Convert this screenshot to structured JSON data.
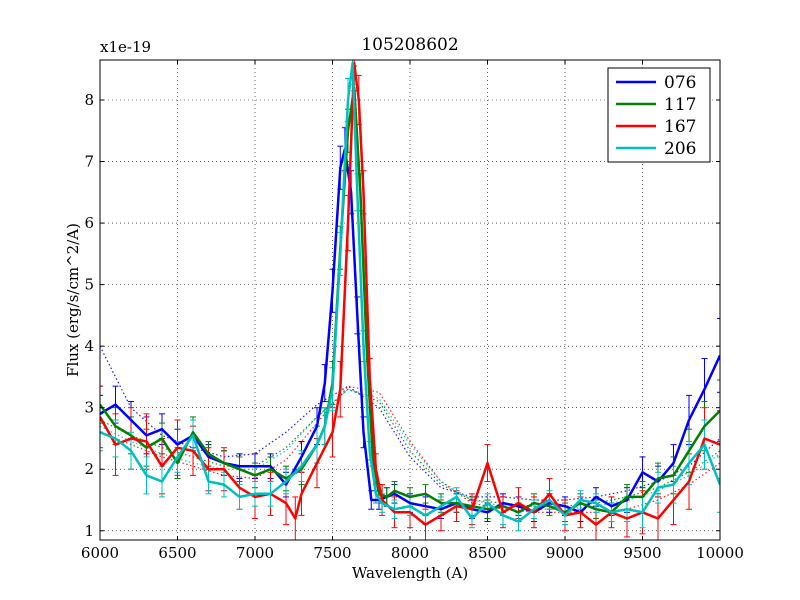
{
  "chart_data": {
    "type": "line",
    "title": "105208602",
    "xlabel": "Wavelength (A)",
    "ylabel": "Flux (erg/s/cm^2/A)",
    "y_scale_label": "x1e-19",
    "xlim": [
      6000,
      10000
    ],
    "ylim": [
      0.85,
      8.65
    ],
    "xticks": [
      6000,
      6500,
      7000,
      7500,
      8000,
      8500,
      9000,
      9500,
      10000
    ],
    "yticks": [
      1,
      2,
      3,
      4,
      5,
      6,
      7,
      8
    ],
    "grid": true,
    "legend_position": "top-right",
    "series": [
      {
        "name": "076",
        "color": "#0000ff",
        "x": [
          6000,
          6100,
          6200,
          6300,
          6400,
          6500,
          6600,
          6700,
          6800,
          6900,
          7000,
          7100,
          7200,
          7300,
          7400,
          7450,
          7500,
          7550,
          7580,
          7620,
          7660,
          7700,
          7750,
          7800,
          7850,
          7900,
          8000,
          8100,
          8200,
          8300,
          8400,
          8500,
          8600,
          8700,
          8800,
          8900,
          9000,
          9100,
          9200,
          9300,
          9400,
          9500,
          9600,
          9700,
          9800,
          9900,
          10000
        ],
        "y": [
          2.9,
          3.05,
          2.8,
          2.55,
          2.65,
          2.4,
          2.55,
          2.2,
          2.1,
          2.05,
          2.05,
          2.05,
          1.75,
          2.2,
          2.7,
          3.4,
          4.9,
          6.9,
          7.2,
          6.5,
          4.5,
          2.6,
          1.5,
          1.5,
          1.55,
          1.6,
          1.45,
          1.4,
          1.35,
          1.45,
          1.35,
          1.3,
          1.45,
          1.4,
          1.3,
          1.45,
          1.4,
          1.3,
          1.55,
          1.4,
          1.5,
          1.95,
          1.8,
          2.1,
          2.8,
          3.3,
          3.85
        ],
        "yerr": [
          0.3,
          0.3,
          0.3,
          0.3,
          0.25,
          0.25,
          0.25,
          0.2,
          0.2,
          0.2,
          0.2,
          0.2,
          0.2,
          0.25,
          0.3,
          0.3,
          0.35,
          0.35,
          0.35,
          0.35,
          0.3,
          0.25,
          0.15,
          0.15,
          0.15,
          0.15,
          0.15,
          0.15,
          0.15,
          0.15,
          0.15,
          0.15,
          0.15,
          0.15,
          0.15,
          0.15,
          0.15,
          0.15,
          0.15,
          0.15,
          0.2,
          0.25,
          0.25,
          0.3,
          0.4,
          0.5,
          0.6
        ],
        "model_x": [
          6000,
          6200,
          6400,
          6600,
          6800,
          7000,
          7200,
          7400,
          7600,
          7800,
          8000,
          8200,
          8400,
          8600,
          8800,
          9000,
          9200,
          9400,
          9600,
          9800,
          10000
        ],
        "model_y": [
          4.0,
          3.0,
          2.55,
          2.35,
          2.2,
          2.25,
          2.6,
          3.05,
          3.35,
          3.0,
          2.2,
          1.7,
          1.55,
          1.55,
          1.5,
          1.5,
          1.55,
          1.65,
          1.8,
          2.05,
          2.5
        ]
      },
      {
        "name": "117",
        "color": "#008000",
        "x": [
          6000,
          6100,
          6200,
          6300,
          6400,
          6500,
          6600,
          6700,
          6800,
          6900,
          7000,
          7100,
          7200,
          7300,
          7400,
          7450,
          7500,
          7550,
          7600,
          7640,
          7680,
          7720,
          7760,
          7800,
          7850,
          7900,
          8000,
          8100,
          8200,
          8300,
          8400,
          8500,
          8600,
          8700,
          8800,
          8900,
          9000,
          9100,
          9200,
          9300,
          9400,
          9500,
          9600,
          9700,
          9800,
          9900,
          10000
        ],
        "y": [
          3.05,
          2.7,
          2.55,
          2.35,
          2.5,
          2.1,
          2.6,
          2.25,
          2.1,
          2.0,
          1.9,
          2.0,
          1.85,
          2.0,
          2.4,
          2.7,
          3.4,
          5.6,
          7.5,
          8.2,
          6.5,
          4.0,
          2.2,
          1.6,
          1.55,
          1.65,
          1.55,
          1.6,
          1.45,
          1.45,
          1.4,
          1.35,
          1.4,
          1.3,
          1.45,
          1.4,
          1.3,
          1.45,
          1.35,
          1.3,
          1.55,
          1.55,
          1.85,
          1.9,
          2.3,
          2.7,
          2.95
        ],
        "yerr": [
          0.3,
          0.3,
          0.3,
          0.3,
          0.25,
          0.25,
          0.25,
          0.2,
          0.2,
          0.2,
          0.2,
          0.2,
          0.2,
          0.25,
          0.3,
          0.3,
          0.35,
          0.35,
          0.35,
          0.35,
          0.3,
          0.25,
          0.15,
          0.15,
          0.15,
          0.15,
          0.15,
          0.15,
          0.15,
          0.15,
          0.15,
          0.15,
          0.15,
          0.15,
          0.15,
          0.15,
          0.15,
          0.15,
          0.15,
          0.15,
          0.2,
          0.25,
          0.25,
          0.3,
          0.35,
          0.4,
          0.5
        ],
        "model_x": [
          6000,
          6200,
          6400,
          6600,
          6800,
          7000,
          7200,
          7400,
          7600,
          7800,
          8000,
          8200,
          8400,
          8600,
          8800,
          9000,
          9200,
          9400,
          9600,
          9800,
          10000
        ],
        "model_y": [
          2.8,
          2.55,
          2.35,
          2.2,
          2.05,
          2.05,
          2.35,
          2.85,
          3.3,
          3.1,
          2.3,
          1.75,
          1.5,
          1.45,
          1.4,
          1.4,
          1.45,
          1.55,
          1.7,
          1.95,
          2.3
        ]
      },
      {
        "name": "167",
        "color": "#ff0000",
        "x": [
          6000,
          6100,
          6200,
          6300,
          6400,
          6500,
          6600,
          6700,
          6800,
          6900,
          7000,
          7100,
          7200,
          7260,
          7300,
          7400,
          7500,
          7550,
          7600,
          7640,
          7670,
          7700,
          7740,
          7780,
          7820,
          7900,
          8000,
          8100,
          8200,
          8300,
          8400,
          8500,
          8600,
          8700,
          8800,
          8900,
          9000,
          9100,
          9200,
          9300,
          9400,
          9500,
          9600,
          9700,
          9800,
          9900,
          10000
        ],
        "y": [
          2.85,
          2.4,
          2.5,
          2.45,
          2.05,
          2.35,
          2.3,
          2.0,
          2.0,
          1.7,
          1.55,
          1.6,
          1.45,
          1.2,
          1.6,
          2.1,
          2.6,
          3.3,
          6.0,
          8.6,
          8.0,
          6.5,
          3.5,
          2.0,
          1.5,
          1.3,
          1.3,
          1.1,
          1.25,
          1.4,
          1.35,
          2.1,
          1.3,
          1.45,
          1.3,
          1.6,
          1.25,
          1.3,
          1.1,
          1.3,
          1.2,
          1.3,
          1.2,
          1.5,
          1.8,
          2.5,
          2.4
        ],
        "yerr": [
          0.5,
          0.5,
          0.5,
          0.45,
          0.45,
          0.45,
          0.4,
          0.35,
          0.35,
          0.35,
          0.35,
          0.35,
          0.35,
          0.35,
          0.35,
          0.4,
          0.4,
          0.45,
          0.45,
          0.45,
          0.4,
          0.35,
          0.3,
          0.25,
          0.25,
          0.25,
          0.25,
          0.25,
          0.25,
          0.25,
          0.25,
          0.3,
          0.25,
          0.25,
          0.25,
          0.25,
          0.25,
          0.25,
          0.25,
          0.25,
          0.3,
          0.35,
          0.35,
          0.4,
          0.45,
          0.5,
          0.55
        ],
        "model_x": [
          6000,
          6200,
          6400,
          6600,
          6800,
          7000,
          7200,
          7400,
          7600,
          7800,
          8000,
          8200,
          8400,
          8600,
          8800,
          9000,
          9200,
          9400,
          9600,
          9800,
          10000
        ],
        "model_y": [
          2.6,
          2.4,
          2.2,
          2.05,
          1.9,
          1.85,
          2.15,
          2.75,
          3.35,
          3.25,
          2.45,
          1.8,
          1.45,
          1.35,
          1.3,
          1.3,
          1.3,
          1.35,
          1.5,
          1.75,
          2.1
        ]
      },
      {
        "name": "206",
        "color": "#00bfbf",
        "x": [
          6000,
          6100,
          6200,
          6300,
          6400,
          6500,
          6600,
          6700,
          6800,
          6900,
          7000,
          7100,
          7200,
          7300,
          7400,
          7450,
          7500,
          7550,
          7600,
          7630,
          7660,
          7700,
          7740,
          7780,
          7820,
          7900,
          8000,
          8100,
          8200,
          8300,
          8400,
          8500,
          8600,
          8700,
          8800,
          8900,
          9000,
          9100,
          9200,
          9300,
          9400,
          9500,
          9600,
          9700,
          9800,
          9900,
          10000
        ],
        "y": [
          2.6,
          2.5,
          2.3,
          1.9,
          1.8,
          2.2,
          2.55,
          1.8,
          1.75,
          1.55,
          1.6,
          1.6,
          1.8,
          2.05,
          2.4,
          2.7,
          3.3,
          5.5,
          8.0,
          8.6,
          6.5,
          4.0,
          2.3,
          1.6,
          1.45,
          1.35,
          1.4,
          1.25,
          1.4,
          1.55,
          1.2,
          1.45,
          1.25,
          1.15,
          1.35,
          1.5,
          1.25,
          1.5,
          1.45,
          1.3,
          1.35,
          1.3,
          1.7,
          1.75,
          2.1,
          2.4,
          1.75
        ],
        "yerr": [
          0.3,
          0.3,
          0.3,
          0.3,
          0.25,
          0.25,
          0.25,
          0.2,
          0.2,
          0.2,
          0.2,
          0.2,
          0.2,
          0.25,
          0.3,
          0.3,
          0.35,
          0.35,
          0.35,
          0.35,
          0.3,
          0.25,
          0.15,
          0.15,
          0.15,
          0.15,
          0.15,
          0.15,
          0.15,
          0.15,
          0.15,
          0.15,
          0.15,
          0.15,
          0.15,
          0.15,
          0.15,
          0.15,
          0.15,
          0.15,
          0.2,
          0.25,
          0.25,
          0.3,
          0.35,
          0.4,
          0.45
        ],
        "model_x": [
          6000,
          6200,
          6400,
          6600,
          6800,
          7000,
          7200,
          7400,
          7600,
          7800,
          8000,
          8200,
          8400,
          8600,
          8800,
          9000,
          9200,
          9400,
          9600,
          9800,
          10000
        ],
        "model_y": [
          2.7,
          2.45,
          2.25,
          2.1,
          2.0,
          2.0,
          2.3,
          2.85,
          3.3,
          3.15,
          2.4,
          1.8,
          1.5,
          1.4,
          1.35,
          1.35,
          1.4,
          1.5,
          1.65,
          1.9,
          2.25
        ]
      }
    ]
  }
}
